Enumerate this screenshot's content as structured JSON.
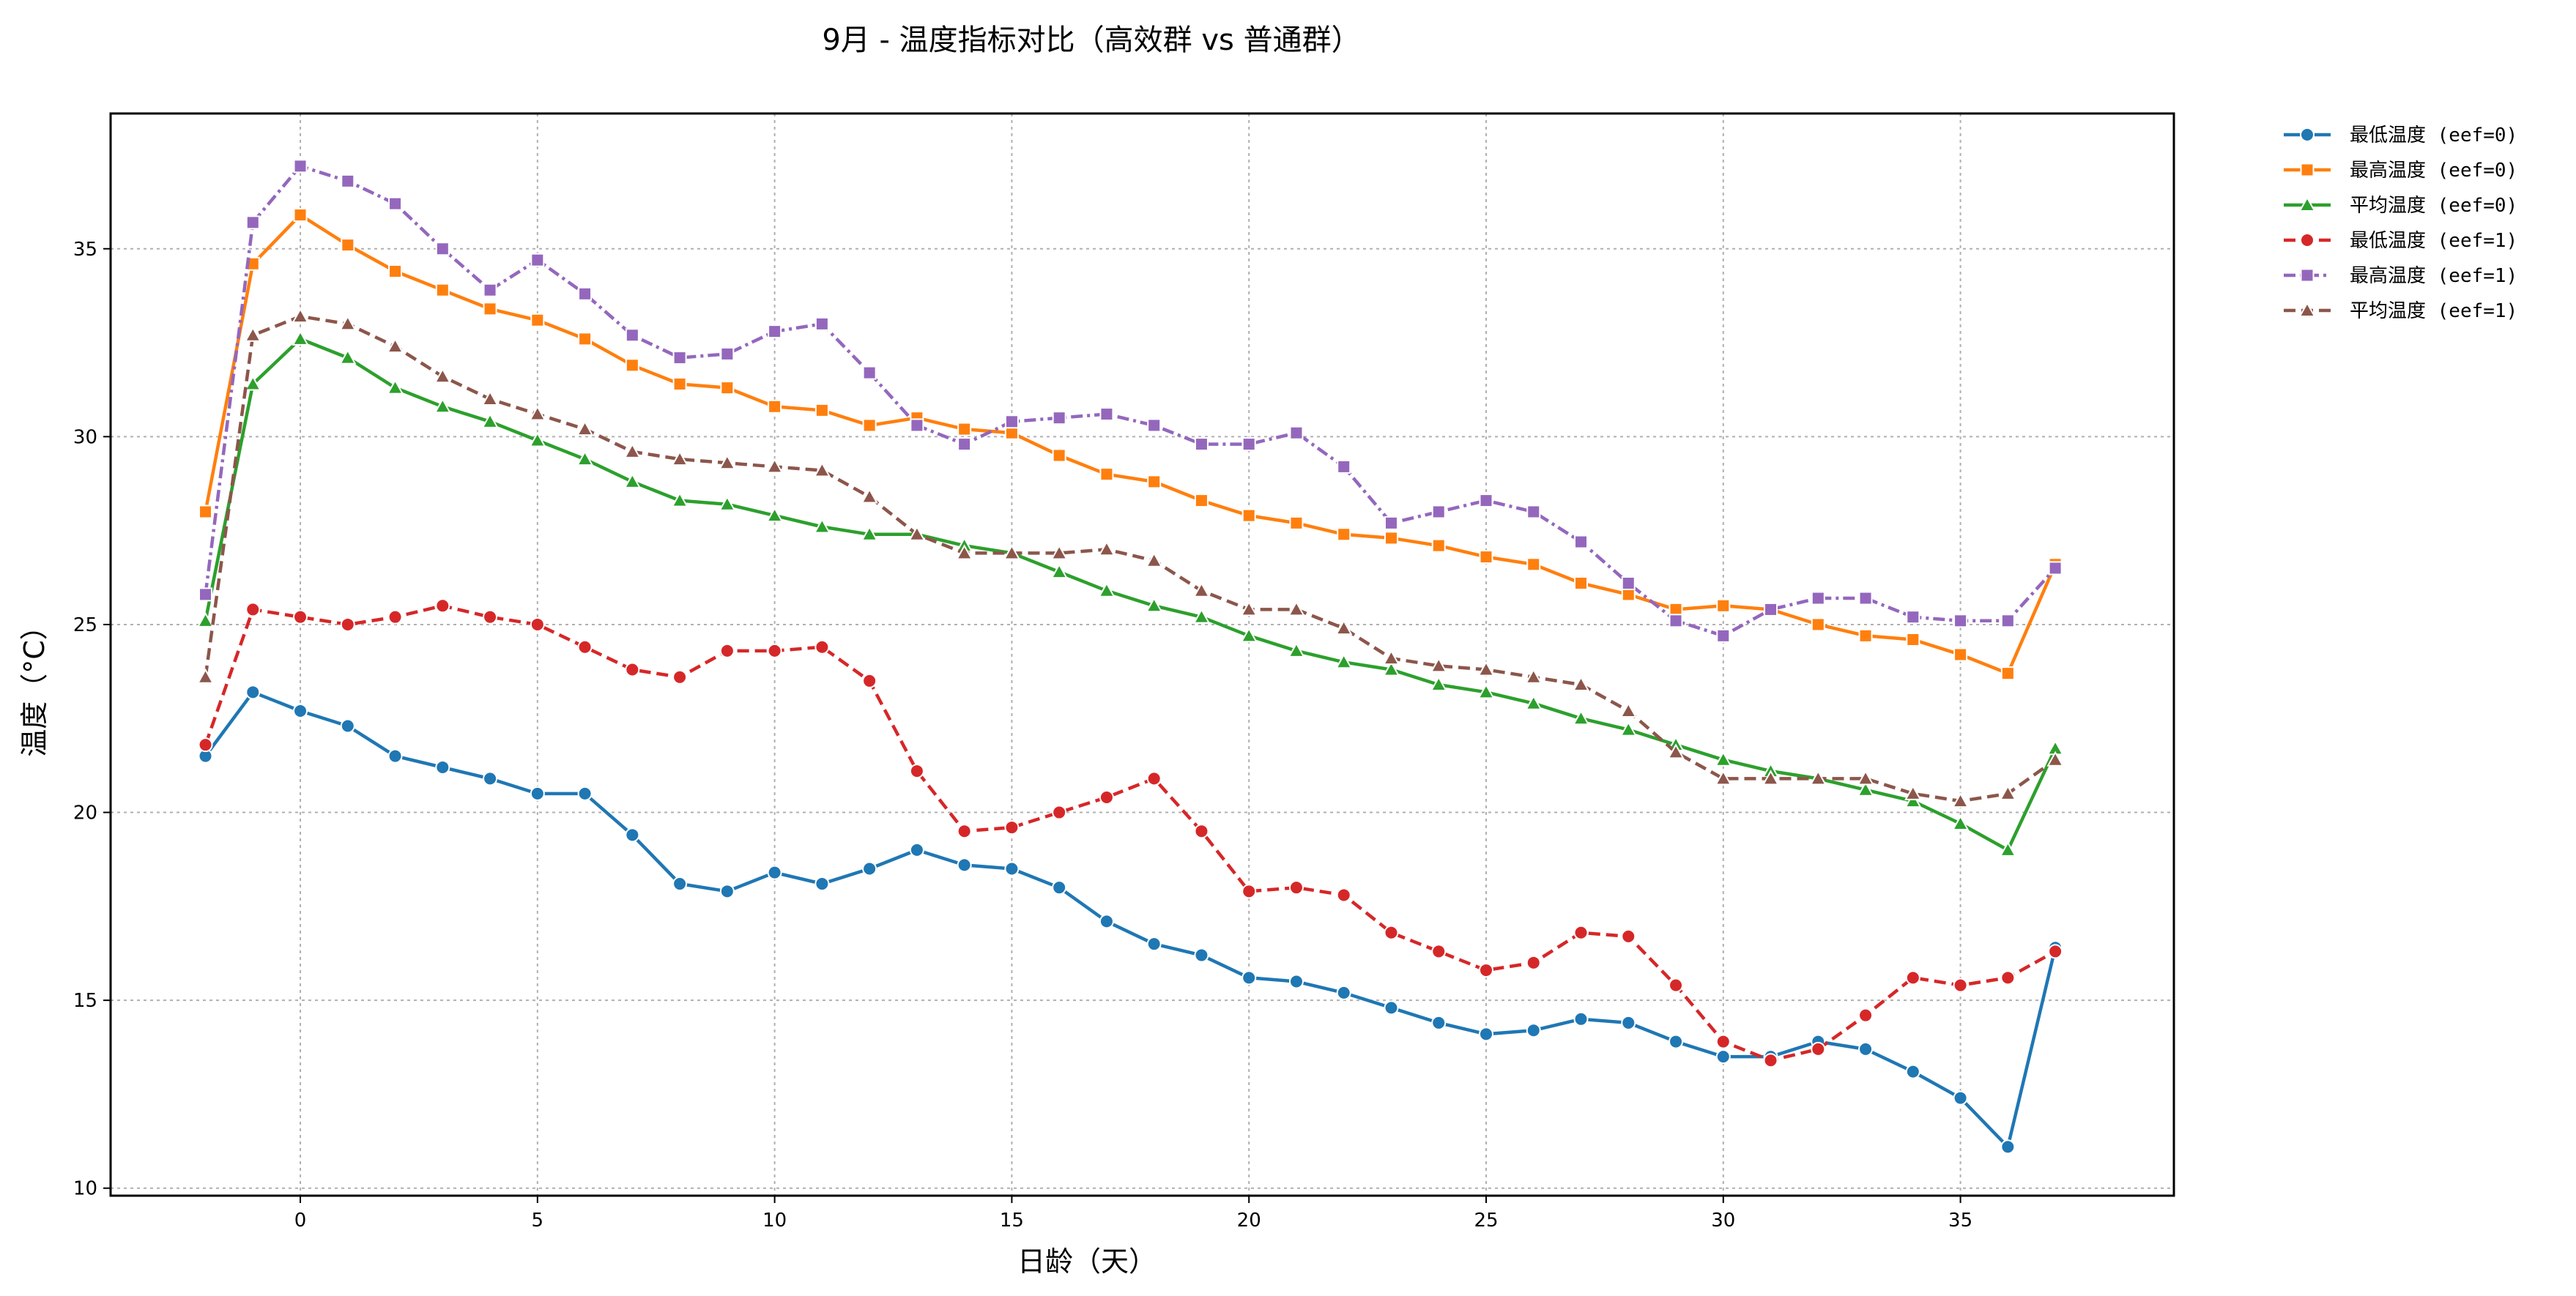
{
  "chart_data": {
    "type": "line",
    "title": "9月 - 温度指标对比（高效群 vs 普通群）",
    "xlabel": "日龄（天）",
    "ylabel": "温度（°C）",
    "xlim": [
      -4,
      39.5
    ],
    "ylim": [
      9.8,
      38.6
    ],
    "xticks": [
      0,
      5,
      10,
      15,
      20,
      25,
      30,
      35
    ],
    "yticks": [
      10,
      15,
      20,
      25,
      30,
      35
    ],
    "grid": true,
    "legend_position": "outside-top-right",
    "x": [
      -2,
      -1,
      0,
      1,
      2,
      3,
      4,
      5,
      6,
      7,
      8,
      9,
      10,
      11,
      12,
      13,
      14,
      15,
      16,
      17,
      18,
      19,
      20,
      21,
      22,
      23,
      24,
      25,
      26,
      27,
      28,
      29,
      30,
      31,
      32,
      33,
      34,
      35,
      36,
      37
    ],
    "series": [
      {
        "name": "最低温度 (eef=0)",
        "color": "#1f77b4",
        "marker": "circle",
        "dash": "solid",
        "values": [
          21.5,
          23.2,
          22.7,
          22.3,
          21.5,
          21.2,
          20.9,
          20.5,
          20.5,
          19.4,
          18.1,
          17.9,
          18.4,
          18.1,
          18.5,
          19.0,
          18.6,
          18.5,
          18.0,
          17.1,
          16.5,
          16.2,
          15.6,
          15.5,
          15.2,
          14.8,
          14.4,
          14.1,
          14.2,
          14.5,
          14.4,
          13.9,
          13.5,
          13.5,
          13.9,
          13.7,
          13.1,
          12.4,
          11.1,
          16.4
        ]
      },
      {
        "name": "最高温度 (eef=0)",
        "color": "#ff7f0e",
        "marker": "square",
        "dash": "solid",
        "values": [
          28.0,
          34.6,
          35.9,
          35.1,
          34.4,
          33.9,
          33.4,
          33.1,
          32.6,
          31.9,
          31.4,
          31.3,
          30.8,
          30.7,
          30.3,
          30.5,
          30.2,
          30.1,
          29.5,
          29.0,
          28.8,
          28.3,
          27.9,
          27.7,
          27.4,
          27.3,
          27.1,
          26.8,
          26.6,
          26.1,
          25.8,
          25.4,
          25.5,
          25.4,
          25.0,
          24.7,
          24.6,
          24.2,
          23.7,
          26.6
        ]
      },
      {
        "name": "平均温度 (eef=0)",
        "color": "#2ca02c",
        "marker": "triangle",
        "dash": "solid",
        "values": [
          25.1,
          31.4,
          32.6,
          32.1,
          31.3,
          30.8,
          30.4,
          29.9,
          29.4,
          28.8,
          28.3,
          28.2,
          27.9,
          27.6,
          27.4,
          27.4,
          27.1,
          26.9,
          26.4,
          25.9,
          25.5,
          25.2,
          24.7,
          24.3,
          24.0,
          23.8,
          23.4,
          23.2,
          22.9,
          22.5,
          22.2,
          21.8,
          21.4,
          21.1,
          20.9,
          20.6,
          20.3,
          19.7,
          19.0,
          21.7
        ]
      },
      {
        "name": "最低温度 (eef=1)",
        "color": "#d62728",
        "marker": "circle",
        "dash": "dashed",
        "values": [
          21.8,
          25.4,
          25.2,
          25.0,
          25.2,
          25.5,
          25.2,
          25.0,
          24.4,
          23.8,
          23.6,
          24.3,
          24.3,
          24.4,
          23.5,
          21.1,
          19.5,
          19.6,
          20.0,
          20.4,
          20.9,
          19.5,
          17.9,
          18.0,
          17.8,
          16.8,
          16.3,
          15.8,
          16.0,
          16.8,
          16.7,
          15.4,
          13.9,
          13.4,
          13.7,
          14.6,
          15.6,
          15.4,
          15.6,
          16.3
        ]
      },
      {
        "name": "最高温度 (eef=1)",
        "color": "#9467bd",
        "marker": "square",
        "dash": "dashdot",
        "values": [
          25.8,
          35.7,
          37.2,
          36.8,
          36.2,
          35.0,
          33.9,
          34.7,
          33.8,
          32.7,
          32.1,
          32.2,
          32.8,
          33.0,
          31.7,
          30.3,
          29.8,
          30.4,
          30.5,
          30.6,
          30.3,
          29.8,
          29.8,
          30.1,
          29.2,
          27.7,
          28.0,
          28.3,
          28.0,
          27.2,
          26.1,
          25.1,
          24.7,
          25.4,
          25.7,
          25.7,
          25.2,
          25.1,
          25.1,
          26.5
        ]
      },
      {
        "name": "平均温度 (eef=1)",
        "color": "#8c564b",
        "marker": "triangle",
        "dash": "dashed",
        "values": [
          23.6,
          32.7,
          33.2,
          33.0,
          32.4,
          31.6,
          31.0,
          30.6,
          30.2,
          29.6,
          29.4,
          29.3,
          29.2,
          29.1,
          28.4,
          27.4,
          26.9,
          26.9,
          26.9,
          27.0,
          26.7,
          25.9,
          25.4,
          25.4,
          24.9,
          24.1,
          23.9,
          23.8,
          23.6,
          23.4,
          22.7,
          21.6,
          20.9,
          20.9,
          20.9,
          20.9,
          20.5,
          20.3,
          20.5,
          21.4
        ]
      }
    ]
  }
}
